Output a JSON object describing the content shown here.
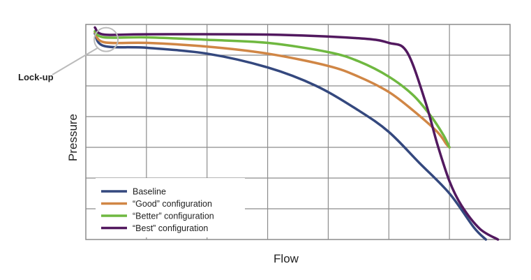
{
  "chart_data": {
    "type": "line",
    "title": "",
    "xlabel": "Flow",
    "ylabel": "Pressure",
    "xlim": [
      0,
      7
    ],
    "ylim": [
      0,
      7
    ],
    "grid": true,
    "legend_position": "bottom-left",
    "annotation": {
      "text": "Lock-up",
      "point": [
        0.3,
        6.6
      ]
    },
    "series": [
      {
        "name": "Baseline",
        "color": "#34487e",
        "x": [
          0.15,
          0.3,
          1.0,
          2.0,
          3.0,
          3.8,
          4.5,
          5.0,
          5.5,
          6.0,
          6.4,
          6.6
        ],
        "y": [
          6.7,
          6.3,
          6.24,
          6.05,
          5.6,
          5.0,
          4.2,
          3.5,
          2.5,
          1.5,
          0.4,
          0.0
        ]
      },
      {
        "name": "“Good” configuration",
        "color": "#d08645",
        "x": [
          0.15,
          0.3,
          1.0,
          2.0,
          3.0,
          4.0,
          4.5,
          5.0,
          5.4,
          5.8,
          5.95,
          6.0
        ],
        "y": [
          6.75,
          6.42,
          6.4,
          6.28,
          6.05,
          5.65,
          5.3,
          4.8,
          4.2,
          3.5,
          3.1,
          3.0
        ]
      },
      {
        "name": "“Better” configuration",
        "color": "#6fb840",
        "x": [
          0.15,
          0.3,
          1.0,
          2.0,
          3.0,
          4.0,
          4.5,
          5.0,
          5.4,
          5.7,
          5.9,
          6.0
        ],
        "y": [
          6.78,
          6.58,
          6.58,
          6.5,
          6.4,
          6.1,
          5.8,
          5.3,
          4.7,
          4.0,
          3.4,
          3.0
        ]
      },
      {
        "name": "“Best” configuration",
        "color": "#52195f",
        "x": [
          0.15,
          0.3,
          1.0,
          3.0,
          4.5,
          5.0,
          5.3,
          5.6,
          5.8,
          6.0,
          6.2,
          6.5,
          6.8
        ],
        "y": [
          6.9,
          6.67,
          6.68,
          6.67,
          6.55,
          6.4,
          6.1,
          4.5,
          3.1,
          1.9,
          1.1,
          0.35,
          0.0
        ]
      }
    ]
  }
}
